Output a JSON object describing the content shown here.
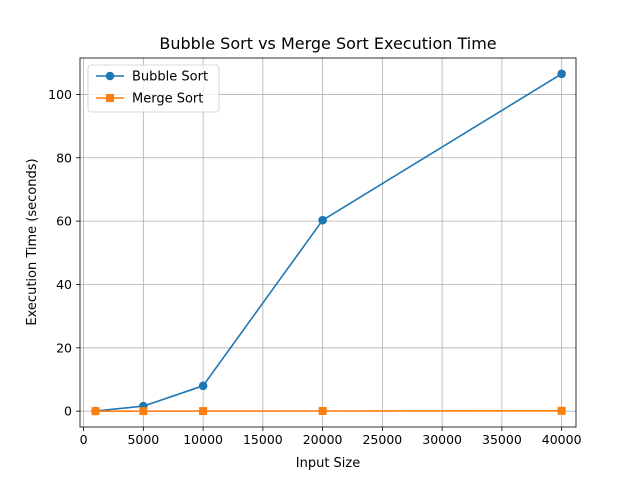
{
  "chart_data": {
    "type": "line",
    "title": "Bubble Sort vs Merge Sort Execution Time",
    "xlabel": "Input Size",
    "ylabel": "Execution Time (seconds)",
    "xlim": [
      -300,
      41200
    ],
    "ylim": [
      -5,
      111.5
    ],
    "xticks": [
      0,
      5000,
      10000,
      15000,
      20000,
      25000,
      30000,
      35000,
      40000
    ],
    "yticks": [
      0,
      20,
      40,
      60,
      80,
      100
    ],
    "grid": true,
    "legend_position": "top-left",
    "x": [
      1000,
      5000,
      10000,
      20000,
      40000
    ],
    "series": [
      {
        "name": "Bubble Sort",
        "color": "#1f77b4",
        "marker": "circle",
        "values": [
          0.05,
          1.6,
          8.0,
          60.3,
          106.5
        ]
      },
      {
        "name": "Merge Sort",
        "color": "#ff7f0e",
        "marker": "square",
        "values": [
          0.002,
          0.012,
          0.025,
          0.055,
          0.11
        ]
      }
    ]
  }
}
